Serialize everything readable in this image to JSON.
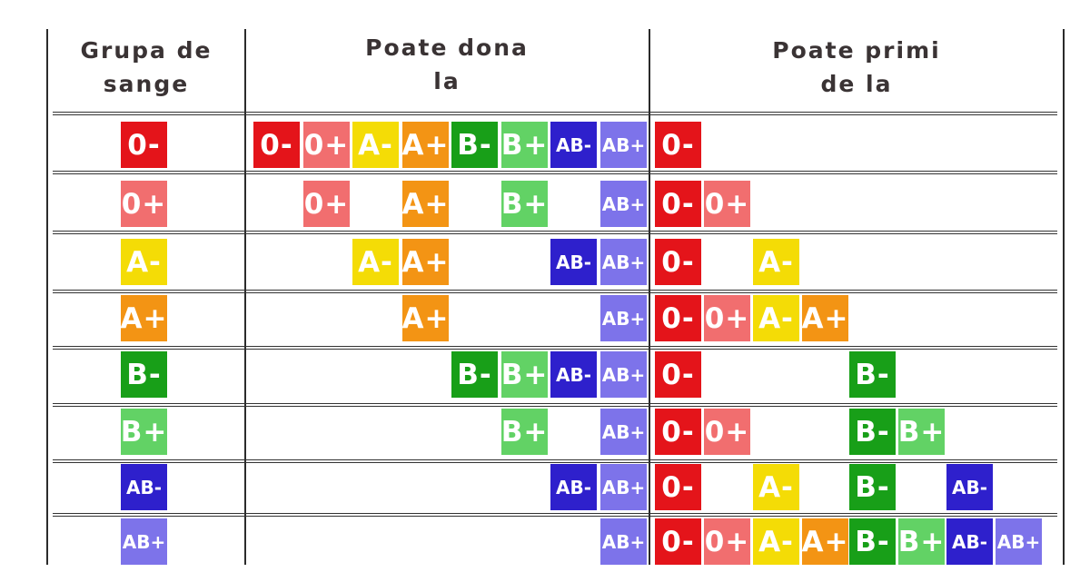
{
  "header": {
    "group_label": "Grupa de\nsange",
    "donate_label": "Poate dona\nla",
    "receive_label": "Poate primi\nde la"
  },
  "types": [
    "0-",
    "0+",
    "A-",
    "A+",
    "B-",
    "B+",
    "AB-",
    "AB+"
  ],
  "colors": {
    "0-": "#e4141a",
    "0+": "#f16e6f",
    "A-": "#f4dc06",
    "A+": "#f39414",
    "B-": "#189f18",
    "B+": "#62d265",
    "AB-": "#2e20cc",
    "AB+": "#7d73ea"
  },
  "chart_data": {
    "type": "table",
    "columns": [
      "Grupa de sange",
      "Poate dona la",
      "Poate primi de la"
    ],
    "rows": [
      {
        "group": "0-",
        "donate": [
          "0-",
          "0+",
          "A-",
          "A+",
          "B-",
          "B+",
          "AB-",
          "AB+"
        ],
        "receive": [
          "0-"
        ]
      },
      {
        "group": "0+",
        "donate": [
          "0+",
          "A+",
          "B+",
          "AB+"
        ],
        "receive": [
          "0-",
          "0+"
        ]
      },
      {
        "group": "A-",
        "donate": [
          "A-",
          "A+",
          "AB-",
          "AB+"
        ],
        "receive": [
          "0-",
          "A-"
        ]
      },
      {
        "group": "A+",
        "donate": [
          "A+",
          "AB+"
        ],
        "receive": [
          "0-",
          "0+",
          "A-",
          "A+"
        ]
      },
      {
        "group": "B-",
        "donate": [
          "B-",
          "B+",
          "AB-",
          "AB+"
        ],
        "receive": [
          "0-",
          "B-"
        ]
      },
      {
        "group": "B+",
        "donate": [
          "B+",
          "AB+"
        ],
        "receive": [
          "0-",
          "0+",
          "B-",
          "B+"
        ]
      },
      {
        "group": "AB-",
        "donate": [
          "AB-",
          "AB+"
        ],
        "receive": [
          "0-",
          "A-",
          "B-",
          "AB-"
        ]
      },
      {
        "group": "AB+",
        "donate": [
          "AB+"
        ],
        "receive": [
          "0-",
          "0+",
          "A-",
          "A+",
          "B-",
          "B+",
          "AB-",
          "AB+"
        ]
      }
    ]
  }
}
